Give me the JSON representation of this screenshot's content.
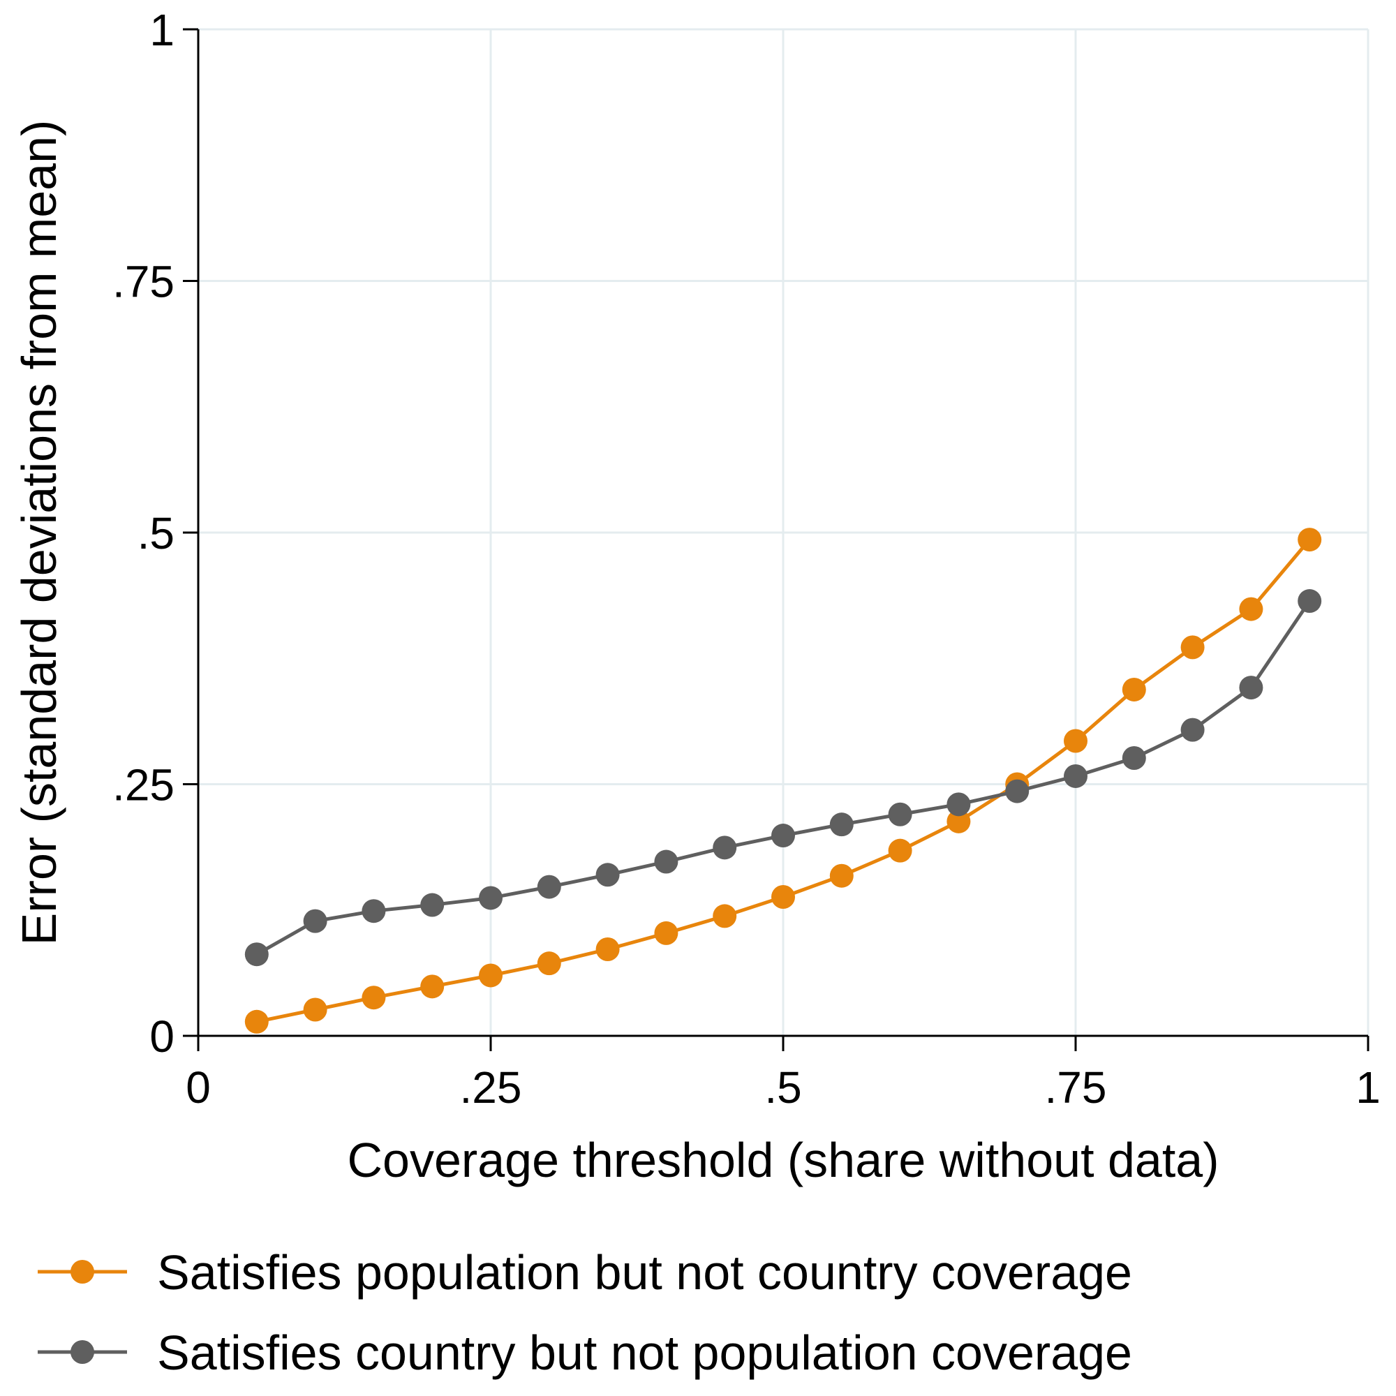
{
  "chart_data": {
    "type": "line",
    "xlabel": "Coverage threshold (share without data)",
    "ylabel": "Error (standard deviations from mean)",
    "xlim": [
      0,
      1
    ],
    "ylim": [
      0,
      1
    ],
    "x_ticks": [
      0,
      0.25,
      0.5,
      0.75,
      1
    ],
    "x_tick_labels": [
      "0",
      ".25",
      ".5",
      ".75",
      "1"
    ],
    "y_ticks": [
      0,
      0.25,
      0.5,
      0.75,
      1
    ],
    "y_tick_labels": [
      "0",
      ".25",
      ".5",
      ".75",
      "1"
    ],
    "grid": true,
    "legend_position": "bottom",
    "x": [
      0.05,
      0.1,
      0.15,
      0.2,
      0.25,
      0.3,
      0.35,
      0.4,
      0.45,
      0.5,
      0.55,
      0.6,
      0.65,
      0.7,
      0.75,
      0.8,
      0.85,
      0.9,
      0.95
    ],
    "series": [
      {
        "name": "Satisfies population but not country coverage",
        "color": "#E8850C",
        "values": [
          0.014,
          0.026,
          0.038,
          0.049,
          0.06,
          0.072,
          0.086,
          0.102,
          0.119,
          0.138,
          0.159,
          0.184,
          0.213,
          0.25,
          0.293,
          0.344,
          0.386,
          0.424,
          0.493
        ]
      },
      {
        "name": "Satisfies country but not population coverage",
        "color": "#5F5F5F",
        "values": [
          0.081,
          0.114,
          0.124,
          0.13,
          0.137,
          0.148,
          0.16,
          0.173,
          0.187,
          0.199,
          0.21,
          0.22,
          0.23,
          0.243,
          0.258,
          0.276,
          0.304,
          0.346,
          0.432
        ]
      }
    ]
  }
}
